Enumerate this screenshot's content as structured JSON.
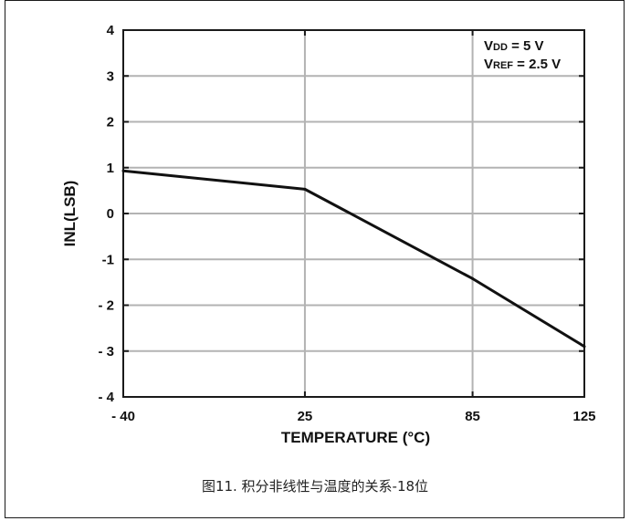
{
  "chart_data": {
    "type": "line",
    "x": [
      -40,
      25,
      85,
      125
    ],
    "series": [
      {
        "values": [
          0.93,
          0.53,
          -1.42,
          -2.9
        ]
      }
    ],
    "xlabel": "TEMPERATURE (°C)",
    "ylabel": "INL(LSB)",
    "xticks": [
      -40,
      25,
      85,
      125
    ],
    "xtick_labels": [
      "- 40",
      "25",
      "85",
      "125"
    ],
    "yticks": [
      4,
      3,
      2,
      1,
      0,
      -1,
      -2,
      -3,
      -4
    ],
    "ytick_labels": [
      "4",
      "3",
      "2",
      "1",
      "0",
      "-1",
      "- 2",
      "- 3",
      "- 4"
    ],
    "xlim": [
      -40,
      125
    ],
    "ylim": [
      -4,
      4
    ],
    "grid": true,
    "annotation": {
      "line1_main": "V",
      "line1_sub": "DD",
      "line1_rest": " = 5 V",
      "line2_main": "V",
      "line2_sub": "REF",
      "line2_rest": " = 2.5 V"
    },
    "colors": {
      "line": "#111111",
      "grid": "#b3b3b3",
      "axis": "#1a1a1a"
    }
  },
  "caption": "图11. 积分非线性与温度的关系-18位"
}
